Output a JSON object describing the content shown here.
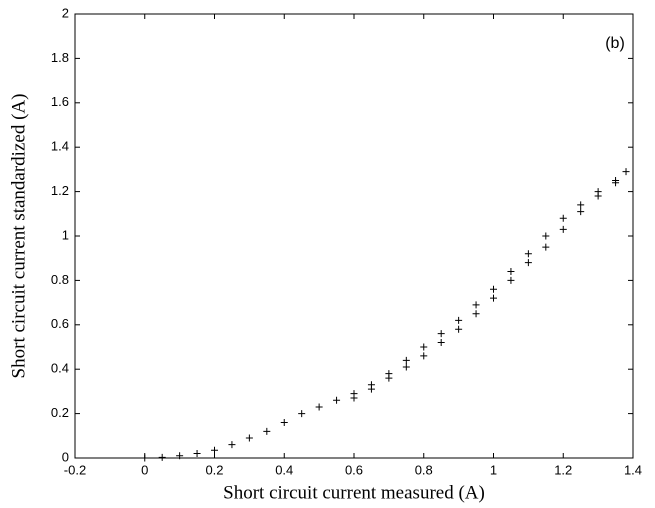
{
  "chart_data": {
    "type": "scatter",
    "xlabel": "Short circuit current measured (A)",
    "ylabel": "Short circuit current standardized (A)",
    "annotation": "(b)",
    "color": "#000000",
    "marker": "+",
    "x": [
      0,
      0.05,
      0.1,
      0.15,
      0.2,
      0.25,
      0.3,
      0.35,
      0.4,
      0.45,
      0.5,
      0.55,
      0.6,
      0.65,
      0.7,
      0.75,
      0.8,
      0.85,
      0.9,
      0.95,
      1.0,
      1.05,
      1.1,
      1.15,
      1.2,
      1.25,
      1.3,
      1.35,
      1.38,
      1.35,
      1.3,
      1.25,
      1.2,
      1.15,
      1.1,
      1.05,
      1.0,
      0.95,
      0.9,
      0.85,
      0.8,
      0.75,
      0.7,
      0.65,
      0.6
    ],
    "values": [
      0,
      0.003,
      0.01,
      0.02,
      0.035,
      0.06,
      0.09,
      0.12,
      0.16,
      0.2,
      0.23,
      0.26,
      0.29,
      0.33,
      0.38,
      0.44,
      0.5,
      0.56,
      0.62,
      0.69,
      0.76,
      0.84,
      0.92,
      1.0,
      1.08,
      1.14,
      1.2,
      1.25,
      1.29,
      1.24,
      1.18,
      1.11,
      1.03,
      0.95,
      0.88,
      0.8,
      0.72,
      0.65,
      0.58,
      0.52,
      0.46,
      0.41,
      0.36,
      0.31,
      0.27
    ],
    "xlim": [
      -0.2,
      1.4
    ],
    "ylim": [
      0,
      2
    ],
    "xticks": [
      -0.2,
      0,
      0.2,
      0.4,
      0.6,
      0.8,
      1,
      1.2,
      1.4
    ],
    "yticks": [
      0,
      0.2,
      0.4,
      0.6,
      0.8,
      1,
      1.2,
      1.4,
      1.6,
      1.8,
      2
    ],
    "grid": false
  }
}
